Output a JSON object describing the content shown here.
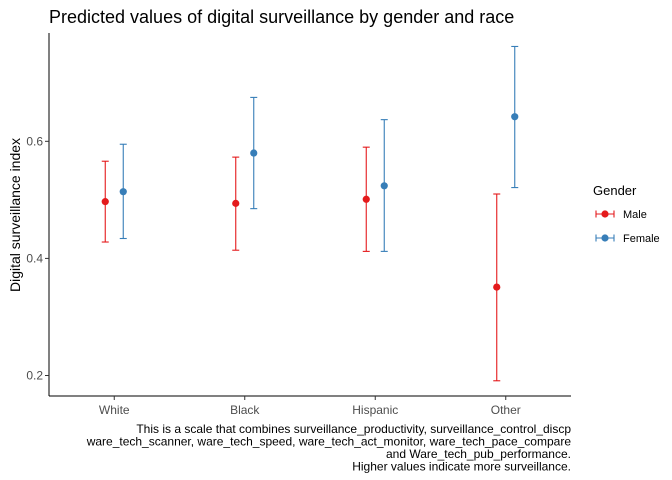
{
  "chart_data": {
    "type": "scatter",
    "title": "Predicted values of digital surveillance by gender and race",
    "xlabel": "",
    "ylabel": "Digital surveillance index",
    "categories": [
      "White",
      "Black",
      "Hispanic",
      "Other"
    ],
    "ylim": [
      0.165,
      0.785
    ],
    "yticks": [
      0.2,
      0.4,
      0.6
    ],
    "ytick_labels": [
      "0.2",
      "0.4",
      "0.6"
    ],
    "grid": false,
    "legend": {
      "title": "Gender",
      "position": "right"
    },
    "series": [
      {
        "name": "Male",
        "color": "#e41a1c",
        "values": [
          0.497,
          0.494,
          0.501,
          0.351
        ],
        "lower": [
          0.428,
          0.414,
          0.412,
          0.191
        ],
        "upper": [
          0.566,
          0.573,
          0.59,
          0.51
        ]
      },
      {
        "name": "Female",
        "color": "#377eb8",
        "values": [
          0.514,
          0.58,
          0.524,
          0.642
        ],
        "lower": [
          0.434,
          0.485,
          0.412,
          0.521
        ],
        "upper": [
          0.595,
          0.675,
          0.637,
          0.762
        ]
      }
    ],
    "caption": [
      "This is a scale that combines surveillance_productivity, surveillance_control_discp",
      "ware_tech_scanner, ware_tech_speed, ware_tech_act_monitor, ware_tech_pace_compare",
      "and Ware_tech_pub_performance.",
      "Higher values indicate more surveillance."
    ]
  }
}
